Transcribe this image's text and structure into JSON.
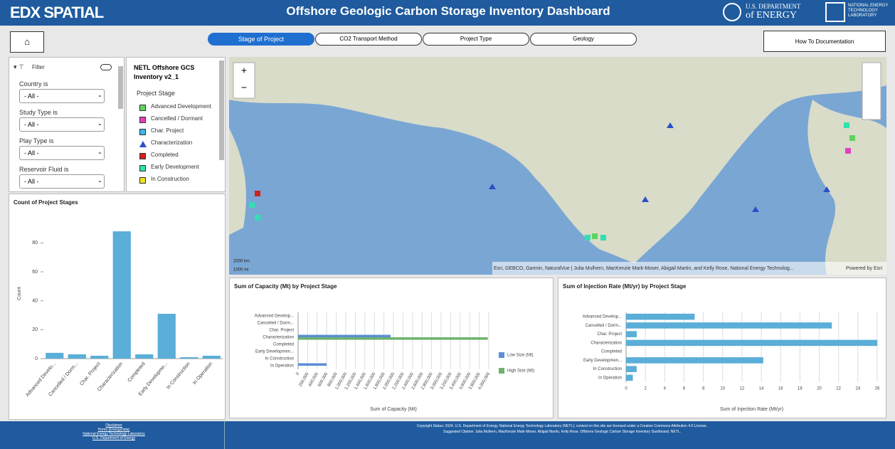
{
  "header": {
    "logo": "EDX SPATIAL",
    "title": "Offshore Geologic Carbon Storage Inventory Dashboard",
    "doe_top": "U.S. DEPARTMENT",
    "doe_bottom": "of ENERGY",
    "netl": "NATIONAL ENERGY TECHNOLOGY LABORATORY"
  },
  "tabs": [
    "Stage of Project",
    "CO2 Transport Method",
    "Project Type",
    "Geology"
  ],
  "doc_button": "How To Documentation",
  "filter": {
    "title": "Filter",
    "fields": [
      {
        "label": "Country is",
        "value": "- All -"
      },
      {
        "label": "Study Type is",
        "value": "- All -"
      },
      {
        "label": "Play Type is",
        "value": "- All -"
      },
      {
        "label": "Reservoir Fluid is",
        "value": "- All -"
      }
    ]
  },
  "legend": {
    "title": "NETL Offshore GCS Inventory v2_1",
    "subtitle": "Project Stage",
    "items": [
      {
        "label": "Advanced Development",
        "color": "#5fd35f",
        "shape": "square"
      },
      {
        "label": "Cancelled / Dormant",
        "color": "#e040c0",
        "shape": "square"
      },
      {
        "label": "Char. Project",
        "color": "#3fb6e8",
        "shape": "square"
      },
      {
        "label": "Characterization",
        "color": "#2a50c8",
        "shape": "triangle"
      },
      {
        "label": "Completed",
        "color": "#d02020",
        "shape": "square"
      },
      {
        "label": "Early Development",
        "color": "#30e0b0",
        "shape": "square"
      },
      {
        "label": "In Construction",
        "color": "#f0e020",
        "shape": "square"
      }
    ]
  },
  "map": {
    "attribution": "Esri, GEBCO, Garmin, NaturalVue | Julia Mulhern, MacKenzie Mark-Moser, Abigail Martin, and Kelly Rose, National Energy Technolog...",
    "powered": "Powered by Esri",
    "scale_km": "2000 km",
    "scale_mi": "1000 mi"
  },
  "chart_data": [
    {
      "type": "bar",
      "orientation": "vertical",
      "title": "Count of Project Stages",
      "ylabel": "Count",
      "color": "#5aaed8",
      "categories": [
        "Advanced Develo...",
        "Cancelled / Dorm...",
        "Char. Project",
        "Characterization",
        "Completed",
        "Early Developme...",
        "In Construction",
        "In Operation"
      ],
      "values": [
        4,
        3,
        2,
        88,
        3,
        31,
        1,
        2
      ],
      "ylim": [
        0,
        90
      ],
      "yticks": [
        0,
        20,
        40,
        60,
        80
      ],
      "grid": false
    },
    {
      "type": "bar",
      "orientation": "horizontal",
      "title": "Sum of Capacity (Mt) by Project Stage",
      "xlabel": "Sum of Capacity (Mt)",
      "categories": [
        "Advanced Develop...",
        "Cancelled / Dorm...",
        "Char. Project",
        "Characterization",
        "Completed",
        "Early Developmen...",
        "In Construction",
        "In Operation"
      ],
      "series": [
        {
          "name": "Low Size (Mt)",
          "color": "#5b8fd6",
          "values": [
            0,
            0,
            0,
            1940000,
            0,
            0,
            0,
            600000
          ]
        },
        {
          "name": "High Size (Mt)",
          "color": "#6db36d",
          "values": [
            0,
            0,
            0,
            3980000,
            0,
            0,
            0,
            0
          ]
        }
      ],
      "xlim": [
        0,
        4000000
      ],
      "xticks": [
        {
          "value": 0,
          "label": "0"
        },
        {
          "value": 200000,
          "label": "200,000"
        },
        {
          "value": 400000,
          "label": "400,000"
        },
        {
          "value": 600000,
          "label": "600,000"
        },
        {
          "value": 800000,
          "label": "800,000"
        },
        {
          "value": 1000000,
          "label": "1,000,000"
        },
        {
          "value": 1200000,
          "label": "1,200,000"
        },
        {
          "value": 1400000,
          "label": "1,400,000"
        },
        {
          "value": 1600000,
          "label": "1,600,000"
        },
        {
          "value": 1800000,
          "label": "1,800,000"
        },
        {
          "value": 2000000,
          "label": "2,000,000"
        },
        {
          "value": 2200000,
          "label": "2,200,000"
        },
        {
          "value": 2400000,
          "label": "2,400,000"
        },
        {
          "value": 2600000,
          "label": "2,600,000"
        },
        {
          "value": 2800000,
          "label": "2,800,000"
        },
        {
          "value": 3000000,
          "label": "3,000,000"
        },
        {
          "value": 3200000,
          "label": "3,200,000"
        },
        {
          "value": 3400000,
          "label": "3,400,000"
        },
        {
          "value": 3600000,
          "label": "3,600,000"
        },
        {
          "value": 3800000,
          "label": "3,800,000"
        },
        {
          "value": 4000000,
          "label": "4,000,000"
        }
      ],
      "grid": true
    },
    {
      "type": "bar",
      "orientation": "horizontal",
      "title": "Sum of Injection Rate (Mt/yr) by Project Stage",
      "xlabel": "Sum of Injection Rate (Mt/yr)",
      "color": "#5aaed8",
      "categories": [
        "Advanced Develop...",
        "Cancelled / Dorm...",
        "Char. Project",
        "Characterization",
        "Completed",
        "Early Developmen...",
        "In Construction",
        "In Operation"
      ],
      "values": [
        7.1,
        21.3,
        1.1,
        26,
        0,
        14.2,
        1.1,
        0.7
      ],
      "xlim": [
        0,
        26
      ],
      "xticks": [
        0,
        2,
        4,
        6,
        8,
        10,
        12,
        14,
        16,
        18,
        20,
        22,
        24,
        26
      ],
      "grid": true
    }
  ],
  "footer": {
    "links": [
      "Disclaimer",
      "Home (EnergyData)",
      "National Energy Technology Laboratory",
      "U.S. Department of Energy"
    ],
    "copyright": "Copyright Status: 2024, U.S. Department of Energy, National Energy Technology Laboratory (NETL); content on this site are licensed under a Creative Commons Attribution 4.0 License.",
    "citation": "Suggested Citation: Julia Mulhern, MacKenzie Mark-Moser, Abigail Martin, Kelly Rose, Offshore Geologic Carbon Storage Inventory Dashboard, NETL."
  }
}
